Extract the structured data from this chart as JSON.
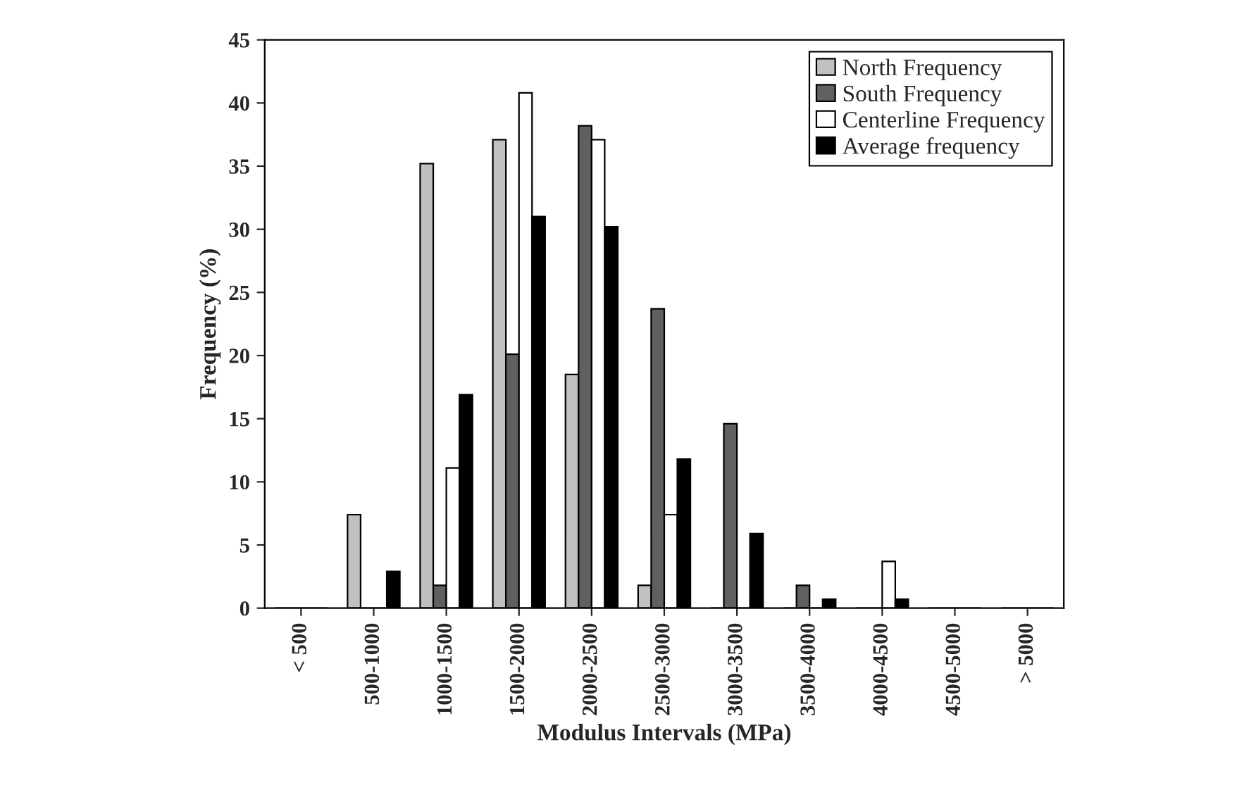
{
  "chart_data": {
    "type": "bar",
    "xlabel": "Modulus Intervals (MPa)",
    "ylabel": "Frequency (%)",
    "categories": [
      "< 500",
      "500-1000",
      "1000-1500",
      "1500-2000",
      "2000-2500",
      "2500-3000",
      "3000-3500",
      "3500-4000",
      "4000-4500",
      "4500-5000",
      "> 5000"
    ],
    "series": [
      {
        "name": "North Frequency",
        "color": "#c0c0c0",
        "values": [
          0,
          7.4,
          35.2,
          37.1,
          18.5,
          1.8,
          0,
          0,
          0,
          0,
          0
        ]
      },
      {
        "name": "South Frequency",
        "color": "#606060",
        "values": [
          0,
          0,
          1.8,
          20.1,
          38.2,
          23.7,
          14.6,
          1.8,
          0,
          0,
          0
        ]
      },
      {
        "name": "Centerline Frequency",
        "color": "#ffffff",
        "values": [
          0,
          0,
          11.1,
          40.8,
          37.1,
          7.4,
          0,
          0,
          3.7,
          0,
          0
        ]
      },
      {
        "name": "Average frequency",
        "color": "#000000",
        "values": [
          0,
          2.9,
          16.9,
          31.0,
          30.2,
          11.8,
          5.9,
          0.7,
          0.7,
          0,
          0
        ]
      }
    ],
    "ylim": [
      0,
      45
    ],
    "yticks": [
      0,
      5,
      10,
      15,
      20,
      25,
      30,
      35,
      40,
      45
    ],
    "legend": "top right",
    "grid": false
  }
}
